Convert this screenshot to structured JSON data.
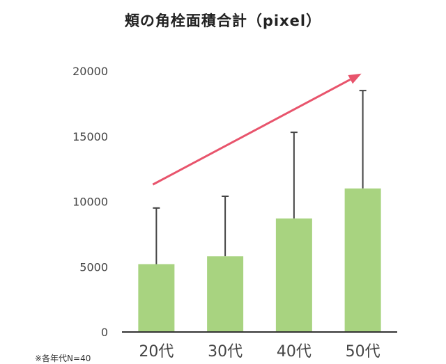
{
  "chart_data": {
    "type": "bar",
    "title": "頬の角栓面積合計（pixel）",
    "categories": [
      "20代",
      "30代",
      "40代",
      "50代"
    ],
    "values": [
      5200,
      5800,
      8700,
      11000
    ],
    "error_upper": [
      9500,
      10400,
      15300,
      18500
    ],
    "ylim": [
      0,
      20000
    ],
    "yticks": [
      "20000",
      "15000",
      "10000",
      "5000",
      "0"
    ],
    "ytick_values": [
      20000,
      15000,
      10000,
      5000,
      0
    ],
    "grid": false,
    "legend": "none",
    "trend_arrow": {
      "from": [
        0,
        11300
      ],
      "to": [
        3,
        19800
      ]
    },
    "footnote": "※各年代N=40",
    "colors": {
      "bar": "#a8d380",
      "error_bar": "#444444",
      "arrow": "#e8546c",
      "axis": "#333333",
      "text": "#444444"
    }
  }
}
